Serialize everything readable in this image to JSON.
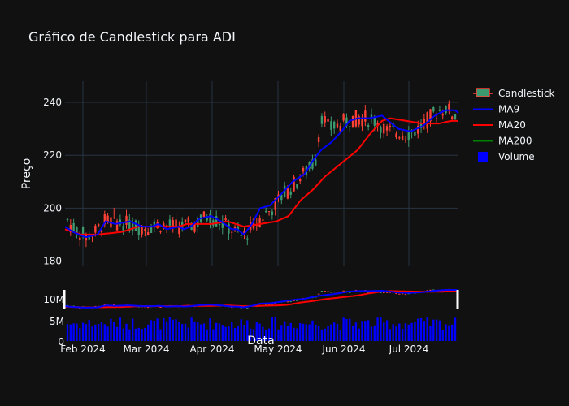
{
  "chart_data": {
    "type": "candlestick",
    "title": "Gráfico de Candlestick para ADI",
    "ylabel": "Preço",
    "xlabel": "Data",
    "ylim": [
      178,
      248
    ],
    "yticks": [
      180,
      200,
      220,
      240
    ],
    "xtick_labels": [
      "Feb 2024",
      "Mar 2024",
      "Apr 2024",
      "May 2024",
      "Jun 2024",
      "Jul 2024"
    ],
    "volume_ticks": [
      "0",
      "5M",
      "10M"
    ],
    "grid": true,
    "legend_position": "top-right",
    "legend": [
      {
        "name": "Candlestick",
        "symbol": "candle"
      },
      {
        "name": "MA9",
        "symbol": "line",
        "color": "#0000ff"
      },
      {
        "name": "MA20",
        "symbol": "line",
        "color": "#ff0000"
      },
      {
        "name": "MA200",
        "symbol": "line",
        "color": "#008000"
      },
      {
        "name": "Volume",
        "symbol": "square",
        "color": "#0000ff"
      }
    ],
    "colors": {
      "up": "#3d9970",
      "down": "#ff4136",
      "volume": "#0000ff",
      "background": "#111111",
      "grid": "#283442"
    },
    "ma9_anchors": [
      [
        0,
        193
      ],
      [
        10,
        191
      ],
      [
        25,
        189
      ],
      [
        40,
        190
      ],
      [
        50,
        195
      ],
      [
        62,
        194
      ],
      [
        80,
        195
      ],
      [
        95,
        193
      ],
      [
        107,
        193
      ],
      [
        115,
        194
      ],
      [
        125,
        192
      ],
      [
        140,
        193
      ],
      [
        146,
        192
      ],
      [
        155,
        193
      ],
      [
        165,
        196
      ],
      [
        180,
        197
      ],
      [
        192,
        195
      ],
      [
        205,
        192
      ],
      [
        212,
        192
      ],
      [
        220,
        190
      ],
      [
        230,
        194
      ],
      [
        240,
        200
      ],
      [
        252,
        201
      ],
      [
        265,
        205
      ],
      [
        280,
        210
      ],
      [
        295,
        213
      ],
      [
        305,
        218
      ],
      [
        315,
        222
      ],
      [
        328,
        225
      ],
      [
        340,
        229
      ],
      [
        350,
        233
      ],
      [
        360,
        234
      ],
      [
        375,
        234
      ],
      [
        390,
        235
      ],
      [
        410,
        230
      ],
      [
        425,
        229
      ],
      [
        440,
        231
      ],
      [
        455,
        235
      ],
      [
        468,
        237
      ],
      [
        480,
        237
      ],
      [
        484,
        236
      ]
    ],
    "ma20_anchors": [
      [
        0,
        192
      ],
      [
        20,
        190
      ],
      [
        40,
        190
      ],
      [
        70,
        191
      ],
      [
        90,
        193
      ],
      [
        120,
        193
      ],
      [
        140,
        193
      ],
      [
        150,
        194
      ],
      [
        165,
        194
      ],
      [
        180,
        194
      ],
      [
        200,
        195
      ],
      [
        220,
        193
      ],
      [
        240,
        194
      ],
      [
        260,
        195
      ],
      [
        275,
        197
      ],
      [
        290,
        203
      ],
      [
        305,
        207
      ],
      [
        320,
        212
      ],
      [
        340,
        217
      ],
      [
        360,
        222
      ],
      [
        375,
        228
      ],
      [
        390,
        233
      ],
      [
        400,
        234
      ],
      [
        420,
        233
      ],
      [
        440,
        232
      ],
      [
        460,
        232
      ],
      [
        475,
        233
      ],
      [
        484,
        233
      ]
    ],
    "candle_model": {
      "count": 126,
      "x_start": 3,
      "x_end": 480,
      "stages": [
        [
          0,
          197
        ],
        [
          8,
          193
        ],
        [
          18,
          191
        ],
        [
          25,
          189
        ],
        [
          30,
          190
        ],
        [
          38,
          191
        ],
        [
          48,
          195
        ],
        [
          60,
          195
        ],
        [
          75,
          194
        ],
        [
          90,
          193
        ],
        [
          105,
          193
        ],
        [
          115,
          194
        ],
        [
          130,
          193
        ],
        [
          145,
          193
        ],
        [
          160,
          194
        ],
        [
          175,
          197
        ],
        [
          190,
          195
        ],
        [
          205,
          192
        ],
        [
          218,
          189
        ],
        [
          228,
          192
        ],
        [
          240,
          196
        ],
        [
          255,
          200
        ],
        [
          268,
          205
        ],
        [
          285,
          210
        ],
        [
          300,
          215
        ],
        [
          308,
          218
        ],
        [
          312,
          228
        ],
        [
          316,
          235
        ],
        [
          325,
          230
        ],
        [
          340,
          232
        ],
        [
          355,
          234
        ],
        [
          370,
          234
        ],
        [
          385,
          233
        ],
        [
          395,
          229
        ],
        [
          410,
          229
        ],
        [
          420,
          228
        ],
        [
          430,
          229
        ],
        [
          445,
          233
        ],
        [
          455,
          236
        ],
        [
          468,
          238
        ],
        [
          480,
          235
        ],
        [
          484,
          232
        ]
      ],
      "noise_amplitude": 3.2,
      "wick_extra": 2.5,
      "volume_base": 0.45,
      "volume_spread": 0.5
    }
  }
}
